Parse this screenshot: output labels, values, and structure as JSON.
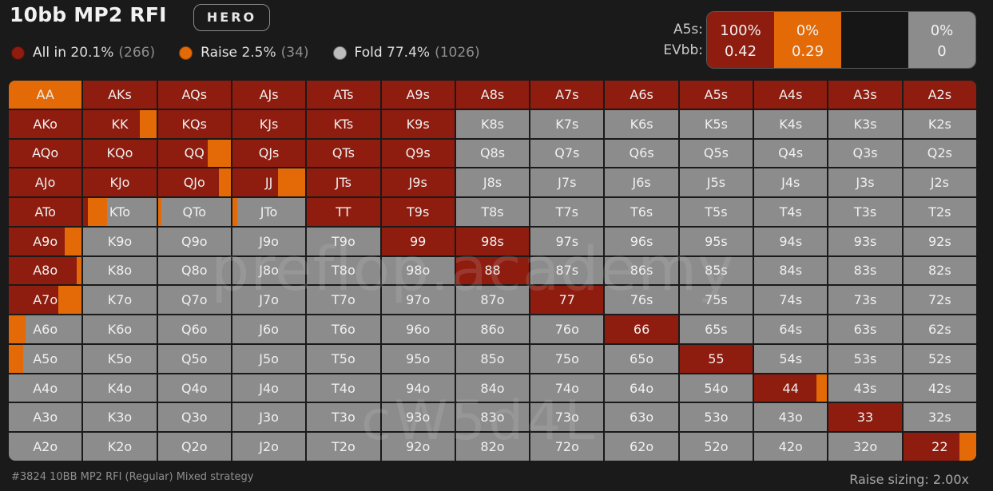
{
  "header": {
    "title": "10bb MP2 RFI",
    "badge": "HERO"
  },
  "legend": [
    {
      "label": "All in",
      "pct": "20.1%",
      "count": "(266)",
      "color": "#8e1c0f"
    },
    {
      "label": "Raise",
      "pct": "2.5%",
      "count": "(34)",
      "color": "#e36a06"
    },
    {
      "label": "Fold",
      "pct": "77.4%",
      "count": "(1026)",
      "color": "#bdbdbd"
    }
  ],
  "combo_info": {
    "hand_label": "A5s:",
    "ev_label": "EVbb:",
    "cells": [
      {
        "pct": "100%",
        "ev": "0.42",
        "color": "#8e1c0f"
      },
      {
        "pct": "0%",
        "ev": "0.29",
        "color": "#e36a06"
      },
      {
        "pct": "",
        "ev": "",
        "color": "#161616"
      },
      {
        "pct": "0%",
        "ev": "0",
        "color": "#8c8c8c"
      }
    ]
  },
  "colors": {
    "allin": "#8e1c0f",
    "raise": "#e36a06",
    "fold": "#8c8c8c"
  },
  "grid": [
    [
      [
        "AA",
        0,
        1
      ],
      [
        "AKs",
        1,
        0
      ],
      [
        "AQs",
        1,
        0
      ],
      [
        "AJs",
        1,
        0
      ],
      [
        "ATs",
        1,
        0
      ],
      [
        "A9s",
        1,
        0
      ],
      [
        "A8s",
        1,
        0
      ],
      [
        "A7s",
        1,
        0
      ],
      [
        "A6s",
        1,
        0
      ],
      [
        "A5s",
        1,
        0
      ],
      [
        "A4s",
        1,
        0
      ],
      [
        "A3s",
        1,
        0
      ],
      [
        "A2s",
        1,
        0
      ]
    ],
    [
      [
        "AKo",
        1,
        0
      ],
      [
        "KK",
        0.77,
        0.23
      ],
      [
        "KQs",
        1,
        0
      ],
      [
        "KJs",
        1,
        0
      ],
      [
        "KTs",
        1,
        0
      ],
      [
        "K9s",
        1,
        0
      ],
      [
        "K8s",
        0,
        0
      ],
      [
        "K7s",
        0,
        0
      ],
      [
        "K6s",
        0,
        0
      ],
      [
        "K5s",
        0,
        0
      ],
      [
        "K4s",
        0,
        0
      ],
      [
        "K3s",
        0,
        0
      ],
      [
        "K2s",
        0,
        0
      ]
    ],
    [
      [
        "AQo",
        1,
        0
      ],
      [
        "KQo",
        1,
        0
      ],
      [
        "QQ",
        0.68,
        0.32
      ],
      [
        "QJs",
        1,
        0
      ],
      [
        "QTs",
        1,
        0
      ],
      [
        "Q9s",
        1,
        0
      ],
      [
        "Q8s",
        0,
        0
      ],
      [
        "Q7s",
        0,
        0
      ],
      [
        "Q6s",
        0,
        0
      ],
      [
        "Q5s",
        0,
        0
      ],
      [
        "Q4s",
        0,
        0
      ],
      [
        "Q3s",
        0,
        0
      ],
      [
        "Q2s",
        0,
        0
      ]
    ],
    [
      [
        "AJo",
        1,
        0
      ],
      [
        "KJo",
        1,
        0
      ],
      [
        "QJo",
        0.84,
        0.16
      ],
      [
        "JJ",
        0.62,
        0.38
      ],
      [
        "JTs",
        1,
        0
      ],
      [
        "J9s",
        1,
        0
      ],
      [
        "J8s",
        0,
        0
      ],
      [
        "J7s",
        0,
        0
      ],
      [
        "J6s",
        0,
        0
      ],
      [
        "J5s",
        0,
        0
      ],
      [
        "J4s",
        0,
        0
      ],
      [
        "J3s",
        0,
        0
      ],
      [
        "J2s",
        0,
        0
      ]
    ],
    [
      [
        "ATo",
        1,
        0
      ],
      [
        "KTo",
        0.06,
        0.26
      ],
      [
        "QTo",
        0,
        0.05
      ],
      [
        "JTo",
        0,
        0.07
      ],
      [
        "TT",
        1,
        0
      ],
      [
        "T9s",
        1,
        0
      ],
      [
        "T8s",
        0,
        0
      ],
      [
        "T7s",
        0,
        0
      ],
      [
        "T6s",
        0,
        0
      ],
      [
        "T5s",
        0,
        0
      ],
      [
        "T4s",
        0,
        0
      ],
      [
        "T3s",
        0,
        0
      ],
      [
        "T2s",
        0,
        0
      ]
    ],
    [
      [
        "A9o",
        0.77,
        0.23
      ],
      [
        "K9o",
        0,
        0
      ],
      [
        "Q9o",
        0,
        0
      ],
      [
        "J9o",
        0,
        0
      ],
      [
        "T9o",
        0,
        0
      ],
      [
        "99",
        1,
        0
      ],
      [
        "98s",
        1,
        0
      ],
      [
        "97s",
        0,
        0
      ],
      [
        "96s",
        0,
        0
      ],
      [
        "95s",
        0,
        0
      ],
      [
        "94s",
        0,
        0
      ],
      [
        "93s",
        0,
        0
      ],
      [
        "92s",
        0,
        0
      ]
    ],
    [
      [
        "A8o",
        0.93,
        0.07
      ],
      [
        "K8o",
        0,
        0
      ],
      [
        "Q8o",
        0,
        0
      ],
      [
        "J8o",
        0,
        0
      ],
      [
        "T8o",
        0,
        0
      ],
      [
        "98o",
        0,
        0
      ],
      [
        "88",
        1,
        0
      ],
      [
        "87s",
        0,
        0
      ],
      [
        "86s",
        0,
        0
      ],
      [
        "85s",
        0,
        0
      ],
      [
        "84s",
        0,
        0
      ],
      [
        "83s",
        0,
        0
      ],
      [
        "82s",
        0,
        0
      ]
    ],
    [
      [
        "A7o",
        0.68,
        0.32
      ],
      [
        "K7o",
        0,
        0
      ],
      [
        "Q7o",
        0,
        0
      ],
      [
        "J7o",
        0,
        0
      ],
      [
        "T7o",
        0,
        0
      ],
      [
        "97o",
        0,
        0
      ],
      [
        "87o",
        0,
        0
      ],
      [
        "77",
        1,
        0
      ],
      [
        "76s",
        0,
        0
      ],
      [
        "75s",
        0,
        0
      ],
      [
        "74s",
        0,
        0
      ],
      [
        "73s",
        0,
        0
      ],
      [
        "72s",
        0,
        0
      ]
    ],
    [
      [
        "A6o",
        0,
        0.23
      ],
      [
        "K6o",
        0,
        0
      ],
      [
        "Q6o",
        0,
        0
      ],
      [
        "J6o",
        0,
        0
      ],
      [
        "T6o",
        0,
        0
      ],
      [
        "96o",
        0,
        0
      ],
      [
        "86o",
        0,
        0
      ],
      [
        "76o",
        0,
        0
      ],
      [
        "66",
        1,
        0
      ],
      [
        "65s",
        0,
        0
      ],
      [
        "64s",
        0,
        0
      ],
      [
        "63s",
        0,
        0
      ],
      [
        "62s",
        0,
        0
      ]
    ],
    [
      [
        "A5o",
        0,
        0.2
      ],
      [
        "K5o",
        0,
        0
      ],
      [
        "Q5o",
        0,
        0
      ],
      [
        "J5o",
        0,
        0
      ],
      [
        "T5o",
        0,
        0
      ],
      [
        "95o",
        0,
        0
      ],
      [
        "85o",
        0,
        0
      ],
      [
        "75o",
        0,
        0
      ],
      [
        "65o",
        0,
        0
      ],
      [
        "55",
        1,
        0
      ],
      [
        "54s",
        0,
        0
      ],
      [
        "53s",
        0,
        0
      ],
      [
        "52s",
        0,
        0
      ]
    ],
    [
      [
        "A4o",
        0,
        0
      ],
      [
        "K4o",
        0,
        0
      ],
      [
        "Q4o",
        0,
        0
      ],
      [
        "J4o",
        0,
        0
      ],
      [
        "T4o",
        0,
        0
      ],
      [
        "94o",
        0,
        0
      ],
      [
        "84o",
        0,
        0
      ],
      [
        "74o",
        0,
        0
      ],
      [
        "64o",
        0,
        0
      ],
      [
        "54o",
        0,
        0
      ],
      [
        "44",
        0.85,
        0.15
      ],
      [
        "43s",
        0,
        0
      ],
      [
        "42s",
        0,
        0
      ]
    ],
    [
      [
        "A3o",
        0,
        0
      ],
      [
        "K3o",
        0,
        0
      ],
      [
        "Q3o",
        0,
        0
      ],
      [
        "J3o",
        0,
        0
      ],
      [
        "T3o",
        0,
        0
      ],
      [
        "93o",
        0,
        0
      ],
      [
        "83o",
        0,
        0
      ],
      [
        "73o",
        0,
        0
      ],
      [
        "63o",
        0,
        0
      ],
      [
        "53o",
        0,
        0
      ],
      [
        "43o",
        0,
        0
      ],
      [
        "33",
        1,
        0
      ],
      [
        "32s",
        0,
        0
      ]
    ],
    [
      [
        "A2o",
        0,
        0
      ],
      [
        "K2o",
        0,
        0
      ],
      [
        "Q2o",
        0,
        0
      ],
      [
        "J2o",
        0,
        0
      ],
      [
        "T2o",
        0,
        0
      ],
      [
        "92o",
        0,
        0
      ],
      [
        "82o",
        0,
        0
      ],
      [
        "72o",
        0,
        0
      ],
      [
        "62o",
        0,
        0
      ],
      [
        "52o",
        0,
        0
      ],
      [
        "42o",
        0,
        0
      ],
      [
        "32o",
        0,
        0
      ],
      [
        "22",
        0.77,
        0.23
      ]
    ]
  ],
  "watermark": {
    "line1": "preflop.academy",
    "line2": "cW5d4L"
  },
  "footer": {
    "left": "#3824 10BB MP2 RFI (Regular) Mixed strategy",
    "right": "Raise sizing: 2.00x"
  }
}
